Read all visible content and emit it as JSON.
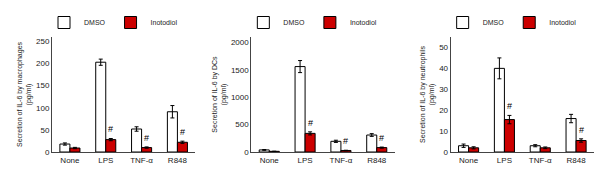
{
  "chart_data": [
    {
      "type": "bar",
      "y_label": "Secretion of IL-6 by macrophages\n(pg/ml)",
      "categories": [
        "None",
        "LPS",
        "TNF-α",
        "R848"
      ],
      "series": [
        {
          "name": "DMSO",
          "color": "#ffffff",
          "values": [
            18,
            203,
            52,
            91
          ],
          "errors": [
            2.5,
            7,
            5,
            14
          ]
        },
        {
          "name": "Inotodiol",
          "color": "#cc0000",
          "values": [
            9,
            28,
            10,
            22
          ],
          "errors": [
            1.5,
            2.5,
            1.5,
            2.5
          ]
        }
      ],
      "annotations": [
        {
          "x": "LPS",
          "series": "Inotodiol",
          "text": "#"
        },
        {
          "x": "TNF-α",
          "series": "Inotodiol",
          "text": "#"
        },
        {
          "x": "R848",
          "series": "Inotodiol",
          "text": "#"
        }
      ],
      "ylim": [
        0,
        260
      ],
      "yticks": [
        0,
        50,
        100,
        150,
        200,
        250
      ],
      "grid": false,
      "legend": "upper left"
    },
    {
      "type": "bar",
      "y_label": "Secretion of IL-6 by DCs\n(pg/ml)",
      "categories": [
        "None",
        "LPS",
        "TNF-α",
        "R848"
      ],
      "series": [
        {
          "name": "DMSO",
          "color": "#ffffff",
          "values": [
            38,
            1560,
            195,
            310
          ],
          "errors": [
            7,
            110,
            20,
            25
          ]
        },
        {
          "name": "Inotodiol",
          "color": "#cc0000",
          "values": [
            12,
            340,
            28,
            80
          ],
          "errors": [
            3,
            28,
            4,
            10
          ]
        }
      ],
      "annotations": [
        {
          "x": "LPS",
          "series": "Inotodiol",
          "text": "#"
        },
        {
          "x": "TNF-α",
          "series": "Inotodiol",
          "text": "#"
        },
        {
          "x": "R848",
          "series": "Inotodiol",
          "text": "#"
        }
      ],
      "ylim": [
        0,
        2100
      ],
      "yticks": [
        0,
        500,
        1000,
        1500,
        2000
      ],
      "grid": false,
      "legend": "upper left"
    },
    {
      "type": "bar",
      "y_label": "Secretion of IL-6 by neutrophils\n(pg/ml)",
      "categories": [
        "None",
        "LPS",
        "TNF-α",
        "R848"
      ],
      "series": [
        {
          "name": "DMSO",
          "color": "#ffffff",
          "values": [
            3,
            40,
            3,
            16
          ],
          "errors": [
            0.8,
            5,
            0.5,
            2
          ]
        },
        {
          "name": "Inotodiol",
          "color": "#cc0000",
          "values": [
            2,
            15.5,
            2,
            5.5
          ],
          "errors": [
            0.5,
            2,
            0.4,
            0.8
          ]
        }
      ],
      "annotations": [
        {
          "x": "LPS",
          "series": "Inotodiol",
          "text": "#"
        },
        {
          "x": "R848",
          "series": "Inotodiol",
          "text": "#"
        }
      ],
      "ylim": [
        0,
        55
      ],
      "yticks": [
        0,
        10,
        20,
        30,
        40,
        50
      ],
      "grid": false,
      "legend": "upper left"
    }
  ]
}
